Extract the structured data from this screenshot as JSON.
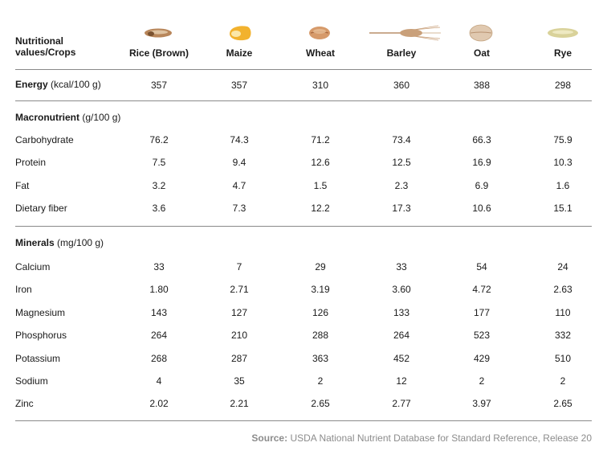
{
  "header": {
    "label": "Nutritional values/Crops",
    "crops": [
      {
        "name": "Rice (Brown)",
        "icon": "rice-grain-icon",
        "color": "#b8865a"
      },
      {
        "name": "Maize",
        "icon": "maize-kernel-icon",
        "color": "#f2b22e"
      },
      {
        "name": "Wheat",
        "icon": "wheat-grain-icon",
        "color": "#d69a6a"
      },
      {
        "name": "Barley",
        "icon": "barley-ear-icon",
        "color": "#c9a07a"
      },
      {
        "name": "Oat",
        "icon": "oat-grain-icon",
        "color": "#e0c9b0"
      },
      {
        "name": "Rye",
        "icon": "rye-grain-icon",
        "color": "#d9d29a"
      }
    ]
  },
  "sections": [
    {
      "title": "Energy",
      "unit": "(kcal/100 g)",
      "values": [
        "357",
        "357",
        "310",
        "360",
        "388",
        "298"
      ],
      "rows": []
    },
    {
      "title": "Macronutrient",
      "unit": "(g/100 g)",
      "values": null,
      "rows": [
        {
          "name": "Carbohydrate",
          "values": [
            "76.2",
            "74.3",
            "71.2",
            "73.4",
            "66.3",
            "75.9"
          ]
        },
        {
          "name": "Protein",
          "values": [
            "7.5",
            "9.4",
            "12.6",
            "12.5",
            "16.9",
            "10.3"
          ]
        },
        {
          "name": "Fat",
          "values": [
            "3.2",
            "4.7",
            "1.5",
            "2.3",
            "6.9",
            "1.6"
          ]
        },
        {
          "name": "Dietary fiber",
          "values": [
            "3.6",
            "7.3",
            "12.2",
            "17.3",
            "10.6",
            "15.1"
          ]
        }
      ]
    },
    {
      "title": "Minerals",
      "unit": "(mg/100 g)",
      "values": null,
      "rows": [
        {
          "name": "Calcium",
          "values": [
            "33",
            "7",
            "29",
            "33",
            "54",
            "24"
          ]
        },
        {
          "name": "Iron",
          "values": [
            "1.80",
            "2.71",
            "3.19",
            "3.60",
            "4.72",
            "2.63"
          ]
        },
        {
          "name": "Magnesium",
          "values": [
            "143",
            "127",
            "126",
            "133",
            "177",
            "110"
          ]
        },
        {
          "name": "Phosphorus",
          "values": [
            "264",
            "210",
            "288",
            "264",
            "523",
            "332"
          ]
        },
        {
          "name": "Potassium",
          "values": [
            "268",
            "287",
            "363",
            "452",
            "429",
            "510"
          ]
        },
        {
          "name": "Sodium",
          "values": [
            "4",
            "35",
            "2",
            "12",
            "2",
            "2"
          ]
        },
        {
          "name": "Zinc",
          "values": [
            "2.02",
            "2.21",
            "2.65",
            "2.77",
            "3.97",
            "2.65"
          ]
        }
      ]
    }
  ],
  "source": {
    "label": "Source:",
    "text": "USDA National Nutrient Database for Standard Reference, Release 20"
  }
}
